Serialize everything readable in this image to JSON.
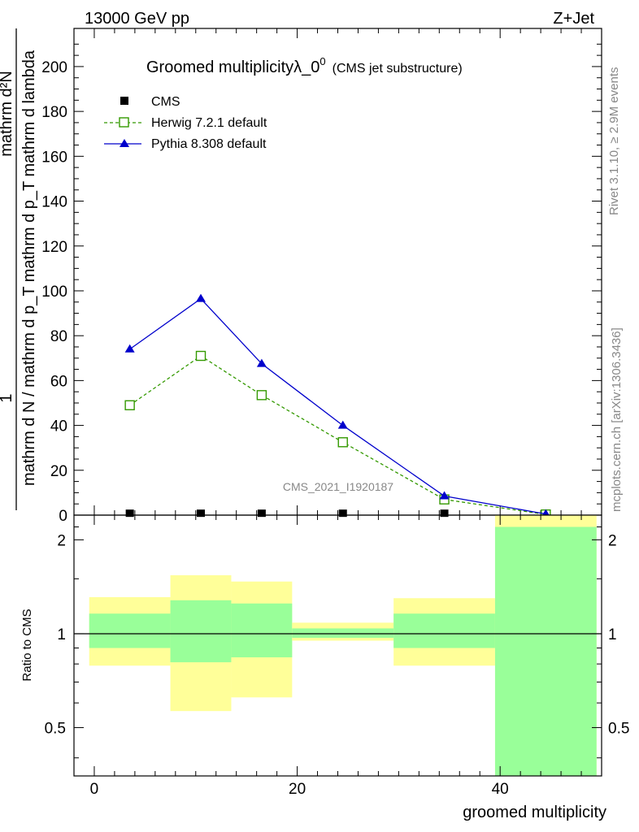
{
  "header": {
    "left": "13000 GeV pp",
    "right": "Z+Jet"
  },
  "side": {
    "rivet": "Rivet 3.1.10, ≥ 2.9M events",
    "mcplots": "mcplots.cern.ch [arXiv:1306.3436]"
  },
  "chart_data": [
    {
      "type": "line",
      "title": "Groomed multiplicityλ_0",
      "title_sup": "0",
      "subtitle": "(CMS jet substructure)",
      "watermark": "CMS_2021_I1920187",
      "ylabel_numerator": "mathrm d²N",
      "ylabel_numerator_lead": "1",
      "ylabel_denominator": "mathrm d N / mathrm d p_T mathrm d p_T mathrm d lambda",
      "xlim": [
        -2,
        50
      ],
      "ylim": [
        0,
        217
      ],
      "ytick_labels": [
        "0",
        "20",
        "40",
        "60",
        "80",
        "100",
        "120",
        "140",
        "160",
        "180",
        "200"
      ],
      "x": [
        3.5,
        10.5,
        16.5,
        24.5,
        34.5,
        44.5
      ],
      "series": [
        {
          "name": "CMS",
          "color": "#000000",
          "marker": "square-filled",
          "values": [
            0.3,
            0.3,
            0.3,
            0.3,
            0.3,
            0.3
          ]
        },
        {
          "name": "Herwig 7.2.1 default",
          "color": "#339900",
          "marker": "square-open",
          "dashed": true,
          "values": [
            49,
            71,
            53.5,
            32.5,
            7,
            0.3
          ]
        },
        {
          "name": "Pythia 8.308 default",
          "color": "#0000cc",
          "marker": "triangle",
          "dashed": false,
          "values": [
            74,
            96.5,
            67.5,
            40,
            8.5,
            0.5
          ]
        }
      ],
      "legend": "top-left"
    },
    {
      "type": "area",
      "ylabel": "Ratio to CMS",
      "xlabel": "groomed multiplicity",
      "xlim": [
        -2,
        50
      ],
      "ylim": [
        0.35,
        2.4
      ],
      "ytick_labels": [
        "0.5",
        "1",
        "2"
      ],
      "xtick_labels": [
        "0",
        "20",
        "40"
      ],
      "reference_line": 1,
      "bins": [
        {
          "low": -0.5,
          "high": 7.5,
          "band1_low": 0.9,
          "band1_high": 1.16,
          "band2_low": 0.79,
          "band2_high": 1.31
        },
        {
          "low": 7.5,
          "high": 13.5,
          "band1_low": 0.81,
          "band1_high": 1.28,
          "band2_low": 0.565,
          "band2_high": 1.54
        },
        {
          "low": 13.5,
          "high": 19.5,
          "band1_low": 0.84,
          "band1_high": 1.25,
          "band2_low": 0.625,
          "band2_high": 1.47
        },
        {
          "low": 19.5,
          "high": 29.5,
          "band1_low": 0.97,
          "band1_high": 1.04,
          "band2_low": 0.95,
          "band2_high": 1.085
        },
        {
          "low": 29.5,
          "high": 39.5,
          "band1_low": 0.9,
          "band1_high": 1.16,
          "band2_low": 0.79,
          "band2_high": 1.3
        },
        {
          "low": 39.5,
          "high": 49.5,
          "band1_low": 0.35,
          "band1_high": 2.2,
          "band2_low": 0.35,
          "band2_high": 2.4
        }
      ],
      "colors": {
        "band1": "#99ff99",
        "band2": "#ffff99"
      }
    }
  ]
}
